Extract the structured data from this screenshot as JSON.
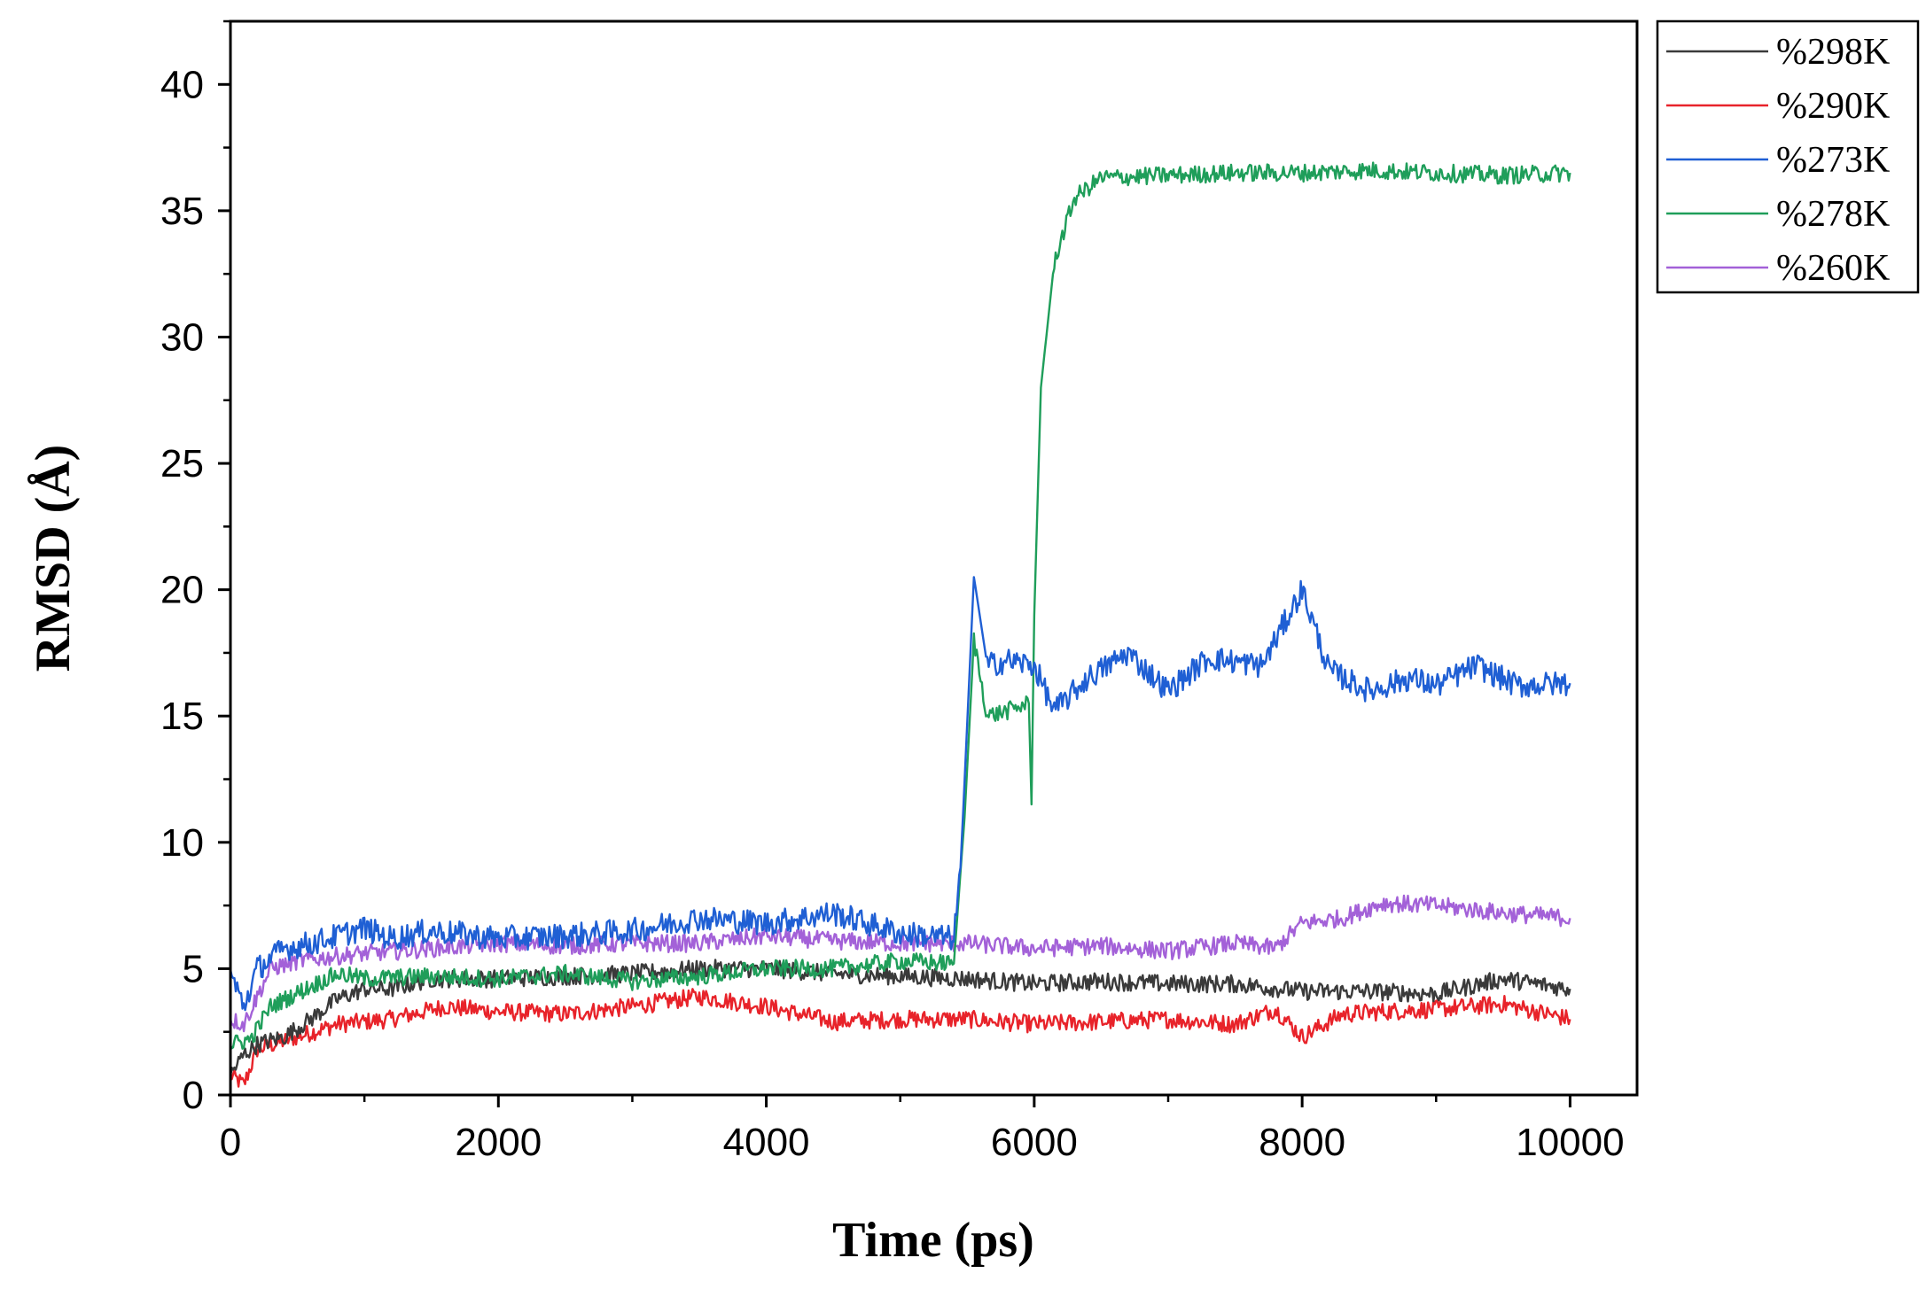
{
  "chart_data": {
    "type": "line",
    "title": "",
    "xlabel": "Time (ps)",
    "ylabel": "RMSD (Å)",
    "xlim": [
      0,
      10500
    ],
    "ylim": [
      0,
      42.5
    ],
    "xticks": [
      0,
      2000,
      4000,
      6000,
      8000,
      10000
    ],
    "yticks": [
      0,
      5,
      10,
      15,
      20,
      25,
      30,
      35,
      40
    ],
    "grid": false,
    "legend_position": "top-right outside",
    "series": [
      {
        "name": "%298K",
        "color": "#3a3a3a",
        "points": [
          [
            0,
            0.8
          ],
          [
            100,
            1.6
          ],
          [
            200,
            2.0
          ],
          [
            400,
            2.3
          ],
          [
            600,
            3.0
          ],
          [
            800,
            3.8
          ],
          [
            1000,
            4.2
          ],
          [
            1200,
            4.2
          ],
          [
            1500,
            4.6
          ],
          [
            2000,
            4.6
          ],
          [
            2500,
            4.7
          ],
          [
            3000,
            4.8
          ],
          [
            3500,
            5.0
          ],
          [
            4000,
            5.0
          ],
          [
            4500,
            4.8
          ],
          [
            5000,
            4.7
          ],
          [
            5500,
            4.6
          ],
          [
            6000,
            4.4
          ],
          [
            6500,
            4.5
          ],
          [
            7000,
            4.4
          ],
          [
            7500,
            4.4
          ],
          [
            8000,
            4.1
          ],
          [
            8500,
            4.1
          ],
          [
            9000,
            4.0
          ],
          [
            9500,
            4.6
          ],
          [
            10000,
            4.2
          ]
        ]
      },
      {
        "name": "%290K",
        "color": "#e8232a",
        "points": [
          [
            0,
            0.8
          ],
          [
            100,
            0.4
          ],
          [
            200,
            1.8
          ],
          [
            500,
            2.3
          ],
          [
            800,
            2.8
          ],
          [
            1200,
            3.0
          ],
          [
            1600,
            3.5
          ],
          [
            2000,
            3.3
          ],
          [
            2500,
            3.2
          ],
          [
            3000,
            3.5
          ],
          [
            3500,
            3.9
          ],
          [
            4000,
            3.5
          ],
          [
            4500,
            2.9
          ],
          [
            5000,
            3.0
          ],
          [
            5500,
            3.0
          ],
          [
            6000,
            2.8
          ],
          [
            6500,
            2.9
          ],
          [
            7000,
            3.0
          ],
          [
            7500,
            2.8
          ],
          [
            7800,
            3.4
          ],
          [
            8000,
            2.3
          ],
          [
            8300,
            3.2
          ],
          [
            8600,
            3.3
          ],
          [
            9000,
            3.4
          ],
          [
            9500,
            3.6
          ],
          [
            10000,
            3.0
          ]
        ]
      },
      {
        "name": "%273K",
        "color": "#1f5fd4",
        "points": [
          [
            0,
            4.8
          ],
          [
            100,
            3.5
          ],
          [
            200,
            5.0
          ],
          [
            400,
            5.8
          ],
          [
            600,
            6.0
          ],
          [
            800,
            6.3
          ],
          [
            1000,
            6.6
          ],
          [
            1200,
            6.2
          ],
          [
            1500,
            6.5
          ],
          [
            2000,
            6.2
          ],
          [
            2500,
            6.3
          ],
          [
            3000,
            6.5
          ],
          [
            3500,
            7.0
          ],
          [
            4000,
            6.8
          ],
          [
            4500,
            7.2
          ],
          [
            5000,
            6.4
          ],
          [
            5400,
            6.2
          ],
          [
            5450,
            9.0
          ],
          [
            5550,
            20.5
          ],
          [
            5650,
            17.0
          ],
          [
            5800,
            17.2
          ],
          [
            6000,
            17.0
          ],
          [
            6150,
            15.2
          ],
          [
            6400,
            16.5
          ],
          [
            6700,
            17.5
          ],
          [
            7000,
            16.0
          ],
          [
            7300,
            17.3
          ],
          [
            7700,
            17.0
          ],
          [
            8000,
            20.0
          ],
          [
            8200,
            16.8
          ],
          [
            8500,
            16.0
          ],
          [
            8800,
            16.5
          ],
          [
            9000,
            16.2
          ],
          [
            9300,
            17.0
          ],
          [
            9600,
            16.2
          ],
          [
            10000,
            16.3
          ]
        ]
      },
      {
        "name": "%278K",
        "color": "#1f9e5a",
        "points": [
          [
            0,
            2.0
          ],
          [
            150,
            2.2
          ],
          [
            300,
            3.5
          ],
          [
            600,
            4.3
          ],
          [
            800,
            4.8
          ],
          [
            1000,
            4.6
          ],
          [
            1500,
            4.7
          ],
          [
            2000,
            4.6
          ],
          [
            2500,
            4.8
          ],
          [
            3000,
            4.5
          ],
          [
            3500,
            4.7
          ],
          [
            4000,
            5.0
          ],
          [
            4500,
            5.0
          ],
          [
            5000,
            5.3
          ],
          [
            5400,
            5.2
          ],
          [
            5480,
            11.0
          ],
          [
            5550,
            18.0
          ],
          [
            5650,
            15.0
          ],
          [
            5800,
            15.2
          ],
          [
            5960,
            15.5
          ],
          [
            5980,
            11.5
          ],
          [
            6000,
            19.0
          ],
          [
            6050,
            28.0
          ],
          [
            6150,
            33.0
          ],
          [
            6300,
            35.5
          ],
          [
            6500,
            36.3
          ],
          [
            7000,
            36.4
          ],
          [
            7500,
            36.5
          ],
          [
            8000,
            36.5
          ],
          [
            8500,
            36.6
          ],
          [
            9000,
            36.5
          ],
          [
            9500,
            36.4
          ],
          [
            10000,
            36.5
          ]
        ]
      },
      {
        "name": "%260K",
        "color": "#a361d8",
        "points": [
          [
            0,
            3.0
          ],
          [
            100,
            2.8
          ],
          [
            300,
            5.0
          ],
          [
            500,
            5.3
          ],
          [
            800,
            5.5
          ],
          [
            1000,
            5.6
          ],
          [
            1500,
            5.8
          ],
          [
            2000,
            6.0
          ],
          [
            2500,
            5.9
          ],
          [
            3000,
            6.0
          ],
          [
            3500,
            6.0
          ],
          [
            4000,
            6.3
          ],
          [
            4500,
            6.1
          ],
          [
            5000,
            6.0
          ],
          [
            5500,
            6.0
          ],
          [
            6000,
            5.8
          ],
          [
            6500,
            5.9
          ],
          [
            7000,
            5.7
          ],
          [
            7500,
            6.0
          ],
          [
            7800,
            5.8
          ],
          [
            8000,
            6.8
          ],
          [
            8300,
            7.0
          ],
          [
            8600,
            7.6
          ],
          [
            9000,
            7.5
          ],
          [
            9500,
            7.2
          ],
          [
            10000,
            7.0
          ]
        ]
      }
    ]
  }
}
